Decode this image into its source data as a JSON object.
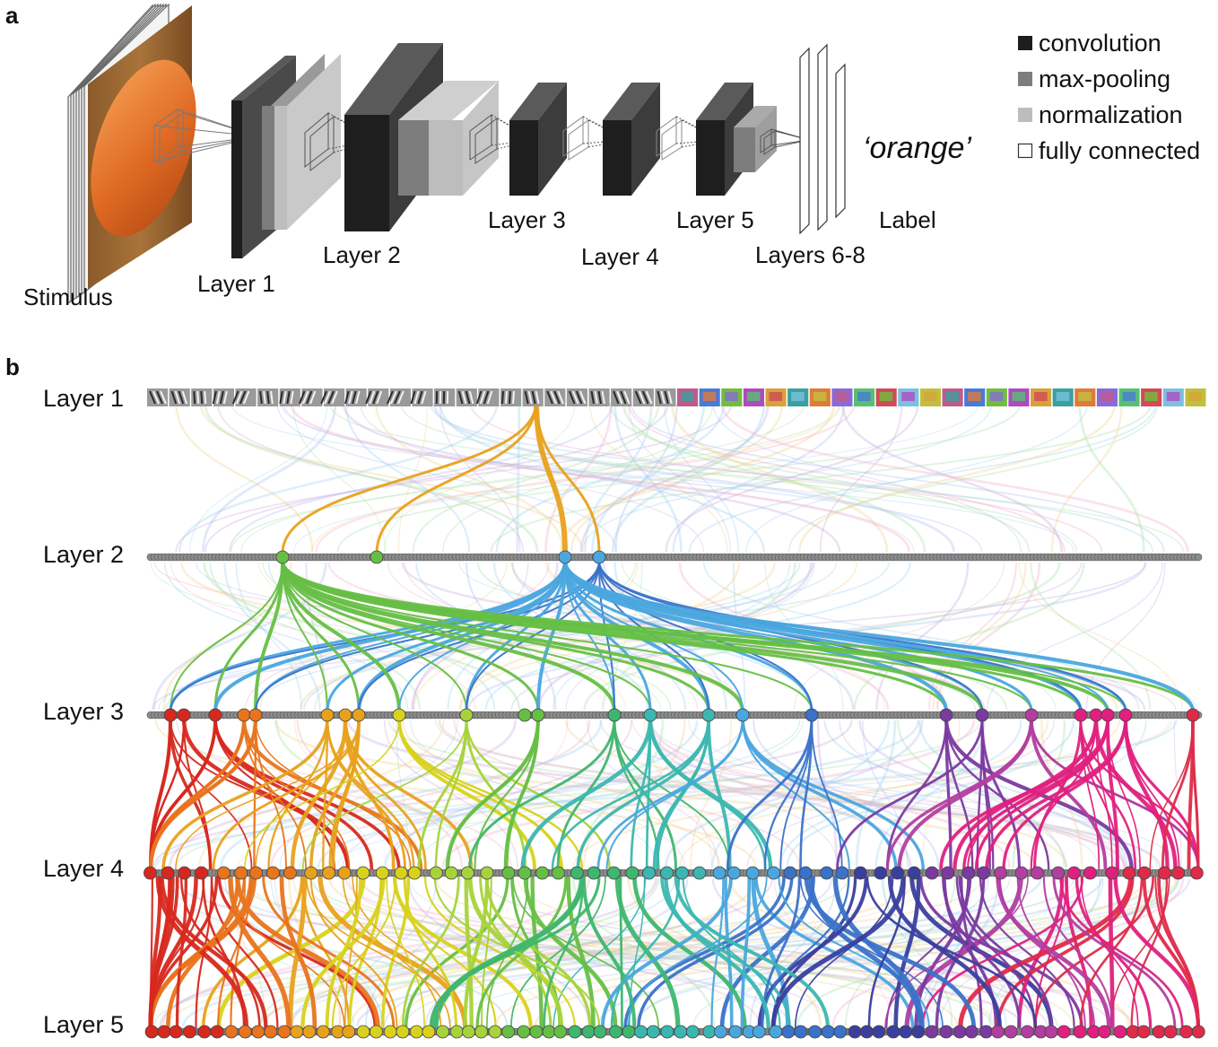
{
  "panel_a": {
    "letter": "a",
    "stimulus_label": "Stimulus",
    "layer_labels": {
      "layer1": "Layer 1",
      "layer2": "Layer 2",
      "layer3": "Layer 3",
      "layer4": "Layer 4",
      "layer5": "Layer 5",
      "layers678": "Layers 6-8"
    },
    "output_text": "‘orange’",
    "output_caption": "Label",
    "legend": [
      {
        "label": "convolution",
        "color": "#1e1e1e",
        "hollow": false
      },
      {
        "label": "max-pooling",
        "color": "#7d7d7d",
        "hollow": false
      },
      {
        "label": "normalization",
        "color": "#bdbdbd",
        "hollow": false
      },
      {
        "label": "fully connected",
        "color": "#ffffff",
        "hollow": true
      }
    ],
    "colors": {
      "convolution": "#1e1e1e",
      "max_pooling": "#7d7d7d",
      "normalization": "#bdbdbd",
      "stimulus": "#e0782c"
    }
  },
  "panel_b": {
    "letter": "b",
    "rows": [
      "Layer 1",
      "Layer 2",
      "Layer 3",
      "Layer 4",
      "Layer 5"
    ],
    "palette": [
      "#d7281f",
      "#e8741d",
      "#e8a11c",
      "#d8d21c",
      "#a7d33a",
      "#66bf44",
      "#3fb66e",
      "#3bb7b0",
      "#4aa6de",
      "#3a72c9",
      "#3a3f9e",
      "#7a3aa0",
      "#b23ea0",
      "#e0207e",
      "#de2b4a"
    ],
    "node_color": "#8c8c8c"
  }
}
